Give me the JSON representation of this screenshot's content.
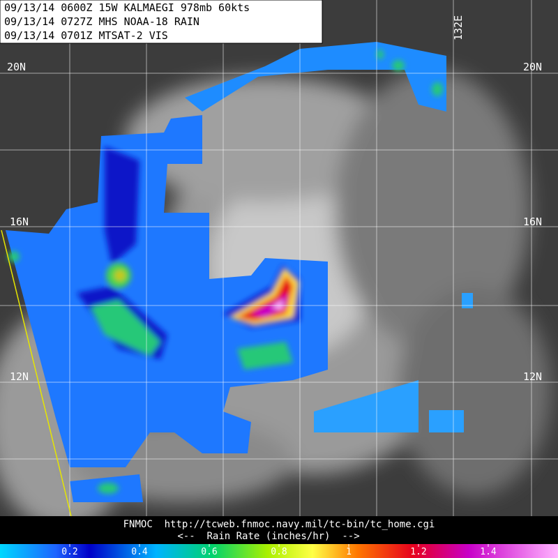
{
  "header": {
    "lines": [
      "09/13/14 0600Z  15W KALMAEGI 978mb 60kts",
      "09/13/14 0727Z  MHS NOAA-18 RAIN",
      "09/13/14 0701Z  MTSAT-2 VIS"
    ]
  },
  "map": {
    "lat_labels": [
      "20N",
      "16N",
      "12N"
    ],
    "lon_label": "132E"
  },
  "footer": {
    "source": "FNMOC  http://tcweb.fnmoc.navy.mil/tc-bin/tc_home.cgi",
    "legend_title": "<--  Rain Rate (inches/hr)  -->"
  },
  "colorbar": {
    "range": [
      0,
      1.6
    ],
    "ticks": [
      0.2,
      0.4,
      0.6,
      0.8,
      1,
      1.2,
      1.4
    ]
  }
}
